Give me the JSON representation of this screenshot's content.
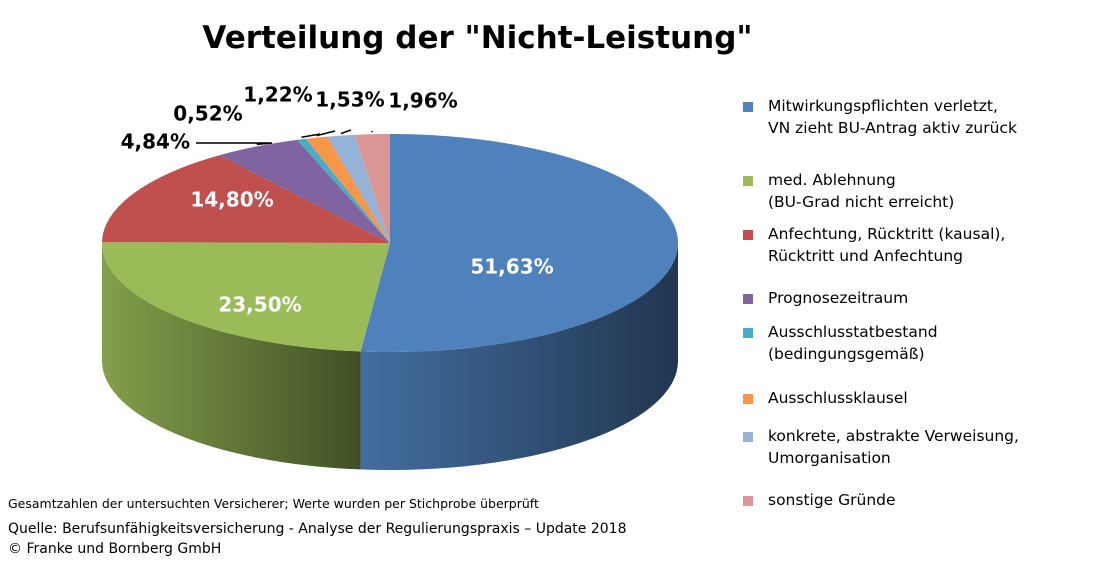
{
  "chart_data": {
    "type": "pie",
    "title": "Verteilung der \"Nicht-Leistung\"",
    "categories": [
      "Mitwirkungspflichten verletzt,\nVN zieht BU-Antrag aktiv zurück",
      "med. Ablehnung\n(BU-Grad nicht erreicht)",
      "Anfechtung, Rücktritt (kausal),\nRücktritt und Anfechtung",
      "Prognosezeitraum",
      "Ausschlusstatbestand\n(bedingungsgemäß)",
      "Ausschlussklausel",
      "konkrete, abstrakte Verweisung,\nUmorganisation",
      "sonstige Gründe"
    ],
    "values": [
      51.63,
      23.5,
      14.8,
      4.84,
      0.52,
      1.22,
      1.53,
      1.96
    ],
    "labels": [
      "51,63%",
      "23,50%",
      "14,80%",
      "4,84%",
      "0,52%",
      "1,22%",
      "1,53%",
      "1,96%"
    ],
    "colors": [
      "#4f81bd",
      "#9bbb59",
      "#c0504d",
      "#8064a2",
      "#4bacc6",
      "#f79646",
      "#95b3d7",
      "#d99694"
    ],
    "legend_position": "right",
    "style": "3d"
  },
  "footnote": "Gesamtzahlen der untersuchten Versicherer; Werte wurden per Stichprobe überprüft",
  "source": "Quelle: Berufsunfähigkeitsversicherung - Analyse der Regulierungspraxis – Update 2018\n© Franke und Bornberg GmbH"
}
